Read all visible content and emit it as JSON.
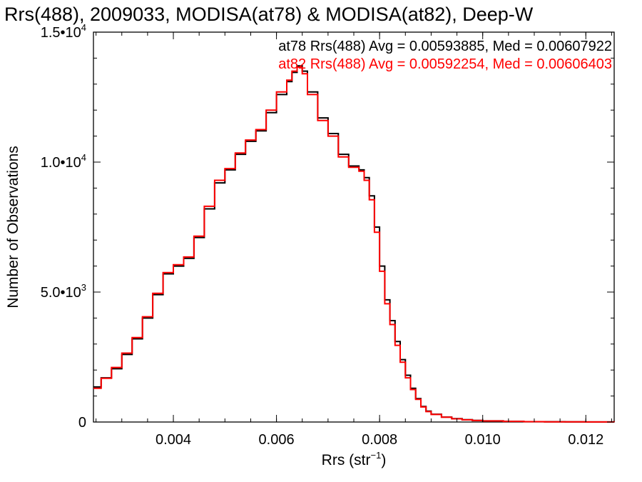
{
  "chart_data": {
    "type": "line",
    "step": true,
    "title": "Rrs(488), 2009033, MODISA(at78) & MODISA(at82), Deep-W",
    "xlabel": "Rrs (str",
    "xlabel_sup": "−1",
    "xlabel_close": ")",
    "ylabel": "Number of Observations",
    "xlim": [
      0.00245,
      0.01255
    ],
    "ylim": [
      0,
      15000
    ],
    "x_ticks": [
      {
        "value": 0.004,
        "label": "0.004"
      },
      {
        "value": 0.006,
        "label": "0.006"
      },
      {
        "value": 0.008,
        "label": "0.008"
      },
      {
        "value": 0.01,
        "label": "0.010"
      },
      {
        "value": 0.012,
        "label": "0.012"
      }
    ],
    "y_ticks": [
      {
        "value": 0,
        "mant": "0",
        "exp": ""
      },
      {
        "value": 5000,
        "mant": "5.0•10",
        "exp": "3"
      },
      {
        "value": 10000,
        "mant": "1.0•10",
        "exp": "4"
      },
      {
        "value": 15000,
        "mant": "1.5•10",
        "exp": "4"
      }
    ],
    "annotations": [
      {
        "text": "at78 Rrs(488) Avg = 0.00593885, Med = 0.00607922",
        "color": "#000000"
      },
      {
        "text": "at82 Rrs(488) Avg = 0.00592254, Med = 0.00606403",
        "color": "#ff0000"
      }
    ],
    "series": [
      {
        "color": "#000000",
        "x": [
          0.00245,
          0.0026,
          0.0028,
          0.003,
          0.0032,
          0.0034,
          0.0036,
          0.0038,
          0.004,
          0.0042,
          0.0044,
          0.0046,
          0.0048,
          0.005,
          0.0052,
          0.0054,
          0.0056,
          0.0058,
          0.006,
          0.0062,
          0.0063,
          0.0064,
          0.0065,
          0.0066,
          0.0068,
          0.007,
          0.0072,
          0.0074,
          0.0076,
          0.0077,
          0.0078,
          0.0079,
          0.008,
          0.0081,
          0.0082,
          0.0083,
          0.0084,
          0.0085,
          0.0086,
          0.0087,
          0.0088,
          0.0089,
          0.009,
          0.0092,
          0.0094,
          0.0096,
          0.0098,
          0.01,
          0.0104,
          0.0108,
          0.0112,
          0.0116,
          0.012,
          0.0124,
          0.01255
        ],
        "y": [
          1350,
          1700,
          2050,
          2600,
          3200,
          4000,
          4900,
          5700,
          6000,
          6300,
          7100,
          8200,
          9200,
          9700,
          10300,
          10800,
          11200,
          11900,
          12600,
          13100,
          13450,
          13700,
          13500,
          12700,
          11700,
          11100,
          10300,
          9850,
          9700,
          9400,
          8700,
          7500,
          6000,
          4700,
          3900,
          3100,
          2400,
          1800,
          1300,
          900,
          600,
          420,
          300,
          190,
          130,
          90,
          60,
          45,
          25,
          15,
          10,
          6,
          4,
          2,
          1
        ]
      },
      {
        "color": "#ff0000",
        "x": [
          0.00245,
          0.0026,
          0.0028,
          0.003,
          0.0032,
          0.0034,
          0.0036,
          0.0038,
          0.004,
          0.0042,
          0.0044,
          0.0046,
          0.0048,
          0.005,
          0.0052,
          0.0054,
          0.0056,
          0.0058,
          0.006,
          0.0062,
          0.0063,
          0.0064,
          0.0065,
          0.0066,
          0.0068,
          0.007,
          0.0072,
          0.0074,
          0.0076,
          0.0077,
          0.0078,
          0.0079,
          0.008,
          0.0081,
          0.0082,
          0.0083,
          0.0084,
          0.0085,
          0.0086,
          0.0087,
          0.0088,
          0.0089,
          0.009,
          0.0092,
          0.0094,
          0.0096,
          0.0098,
          0.01,
          0.0104,
          0.0108,
          0.0112,
          0.0116,
          0.012,
          0.0124,
          0.01255
        ],
        "y": [
          1300,
          1680,
          2100,
          2650,
          3250,
          4050,
          4950,
          5750,
          6050,
          6350,
          7150,
          8300,
          9300,
          9750,
          10350,
          10850,
          11250,
          12000,
          12700,
          13150,
          13500,
          13650,
          13400,
          12600,
          11600,
          11000,
          10200,
          9800,
          9650,
          9300,
          8550,
          7300,
          5800,
          4550,
          3750,
          2950,
          2300,
          1700,
          1250,
          870,
          580,
          400,
          290,
          185,
          125,
          85,
          58,
          42,
          24,
          14,
          9,
          5,
          3,
          2,
          1
        ]
      }
    ]
  }
}
